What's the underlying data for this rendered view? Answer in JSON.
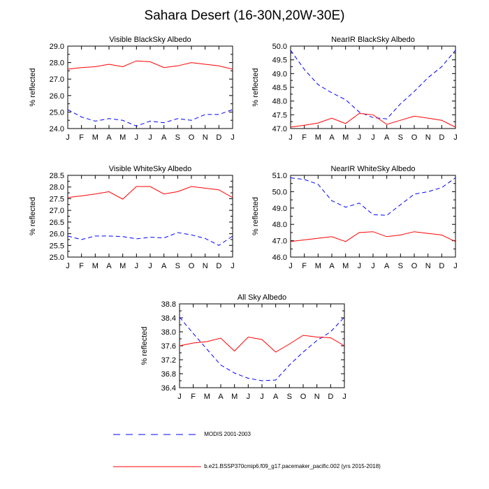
{
  "figure_title": "Sahara Desert (16-30N,20W-30E)",
  "legend": {
    "entries": [
      {
        "label": "MODIS 2001-2003",
        "color": "#0000ff",
        "style": "dashed"
      },
      {
        "label": "b.e21.BSSP370cmip6.f09_g17.pacemaker_pacific.002 (yrs 2015-2018)",
        "color": "#ff0000",
        "style": "solid"
      }
    ]
  },
  "chart_data": [
    {
      "type": "line",
      "title": "Visible BlackSky Albedo",
      "ylabel": "% reflected",
      "categories": [
        "J",
        "F",
        "M",
        "A",
        "M",
        "J",
        "J",
        "A",
        "S",
        "O",
        "N",
        "D",
        "J"
      ],
      "ylim": [
        24.0,
        29.0
      ],
      "yticks": [
        "24.0",
        "25.0",
        "26.0",
        "27.0",
        "28.0",
        "29.0"
      ],
      "series": [
        {
          "name": "MODIS 2001-2003",
          "color": "#0000ff",
          "dash": true,
          "values": [
            25.15,
            24.7,
            24.45,
            24.6,
            24.5,
            24.15,
            24.45,
            24.35,
            24.6,
            24.5,
            24.85,
            24.85,
            25.15
          ]
        },
        {
          "name": "b.e21.BSSP370cmip6.f09_g17.pacemaker_pacific.002 (yrs 2015-2018)",
          "color": "#ff0000",
          "dash": false,
          "values": [
            27.6,
            27.7,
            27.75,
            27.9,
            27.75,
            28.1,
            28.05,
            27.7,
            27.8,
            28.0,
            27.9,
            27.8,
            27.6
          ]
        }
      ]
    },
    {
      "type": "line",
      "title": "NearIR BlackSky Albedo",
      "ylabel": "% reflected",
      "categories": [
        "J",
        "F",
        "M",
        "A",
        "M",
        "J",
        "J",
        "A",
        "S",
        "O",
        "N",
        "D",
        "J"
      ],
      "ylim": [
        47.0,
        50.0
      ],
      "yticks": [
        "47.0",
        "47.5",
        "48.0",
        "48.5",
        "49.0",
        "49.5",
        "50.0"
      ],
      "series": [
        {
          "name": "MODIS 2001-2003",
          "color": "#0000ff",
          "dash": true,
          "values": [
            49.85,
            49.15,
            48.6,
            48.3,
            48.05,
            47.6,
            47.4,
            47.35,
            47.9,
            48.35,
            48.85,
            49.25,
            49.85
          ]
        },
        {
          "name": "b.e21.BSSP370cmip6.f09_g17.pacemaker_pacific.002 (yrs 2015-2018)",
          "color": "#ff0000",
          "dash": false,
          "values": [
            47.05,
            47.12,
            47.2,
            47.38,
            47.18,
            47.55,
            47.5,
            47.15,
            47.3,
            47.45,
            47.38,
            47.3,
            47.05
          ]
        }
      ]
    },
    {
      "type": "line",
      "title": "Visible WhiteSky Albedo",
      "ylabel": "% reflected",
      "categories": [
        "J",
        "F",
        "M",
        "A",
        "M",
        "J",
        "J",
        "A",
        "S",
        "O",
        "N",
        "D",
        "J"
      ],
      "ylim": [
        25.0,
        28.5
      ],
      "yticks": [
        "25.0",
        "25.5",
        "26.0",
        "26.5",
        "27.0",
        "27.5",
        "28.0",
        "28.5"
      ],
      "series": [
        {
          "name": "MODIS 2001-2003",
          "color": "#0000ff",
          "dash": true,
          "values": [
            25.9,
            25.75,
            25.9,
            25.9,
            25.88,
            25.78,
            25.85,
            25.82,
            26.05,
            25.95,
            25.8,
            25.5,
            25.9
          ]
        },
        {
          "name": "b.e21.BSSP370cmip6.f09_g17.pacemaker_pacific.002 (yrs 2015-2018)",
          "color": "#ff0000",
          "dash": false,
          "values": [
            27.55,
            27.62,
            27.7,
            27.8,
            27.48,
            28.02,
            28.02,
            27.7,
            27.8,
            28.02,
            27.95,
            27.88,
            27.55
          ]
        }
      ]
    },
    {
      "type": "line",
      "title": "NearIR WhiteSky Albedo",
      "ylabel": "% reflected",
      "categories": [
        "J",
        "F",
        "M",
        "A",
        "M",
        "J",
        "J",
        "A",
        "S",
        "O",
        "N",
        "D",
        "J"
      ],
      "ylim": [
        46.0,
        51.0
      ],
      "yticks": [
        "46.0",
        "47.0",
        "48.0",
        "49.0",
        "50.0",
        "51.0"
      ],
      "series": [
        {
          "name": "MODIS 2001-2003",
          "color": "#0000ff",
          "dash": true,
          "values": [
            50.85,
            50.75,
            50.45,
            49.45,
            49.05,
            49.3,
            48.6,
            48.55,
            49.2,
            49.85,
            50.0,
            50.25,
            50.85
          ]
        },
        {
          "name": "b.e21.BSSP370cmip6.f09_g17.pacemaker_pacific.002 (yrs 2015-2018)",
          "color": "#ff0000",
          "dash": false,
          "values": [
            46.95,
            47.05,
            47.15,
            47.25,
            46.95,
            47.5,
            47.55,
            47.25,
            47.35,
            47.55,
            47.45,
            47.35,
            46.95
          ]
        }
      ]
    },
    {
      "type": "line",
      "title": "All Sky Albedo",
      "ylabel": "% reflected",
      "categories": [
        "J",
        "F",
        "M",
        "A",
        "M",
        "J",
        "J",
        "A",
        "S",
        "O",
        "N",
        "D",
        "J"
      ],
      "ylim": [
        36.4,
        38.8
      ],
      "yticks": [
        "36.4",
        "36.8",
        "37.2",
        "37.6",
        "38.0",
        "38.4",
        "38.8"
      ],
      "series": [
        {
          "name": "MODIS 2001-2003",
          "color": "#0000ff",
          "dash": true,
          "values": [
            38.42,
            37.95,
            37.5,
            37.05,
            36.82,
            36.67,
            36.6,
            36.62,
            37.05,
            37.42,
            37.75,
            38.0,
            38.42
          ]
        },
        {
          "name": "b.e21.BSSP370cmip6.f09_g17.pacemaker_pacific.002 (yrs 2015-2018)",
          "color": "#ff0000",
          "dash": false,
          "values": [
            37.6,
            37.68,
            37.72,
            37.82,
            37.45,
            37.85,
            37.78,
            37.42,
            37.65,
            37.9,
            37.85,
            37.83,
            37.6
          ]
        }
      ]
    }
  ]
}
